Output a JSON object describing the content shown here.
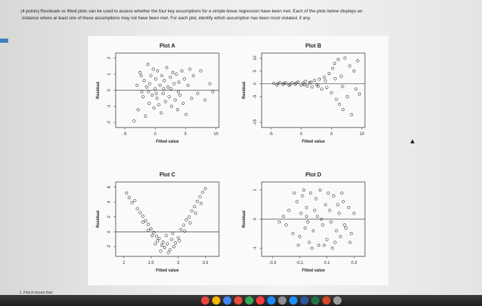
{
  "question": {
    "line1": "(4 points) Residuals vs fitted plots can be used to assess whether the four key assumptions for a simple linear regression have been met. Each of the plots below displays an",
    "line2": "instance where at least one of these assumptions may not have been met. For each plot, identify which assumption has been most violated, if any."
  },
  "answer_prompt": "1. Plot A shows that",
  "colors": {
    "accent": "#3f7fc1",
    "taskbar": "#1e1e1e",
    "point": "#222222"
  },
  "taskbar_icons": [
    "chrome-icon",
    "photos-icon",
    "mail-icon",
    "calendar-icon",
    "maps-icon",
    "music-icon",
    "app-store-icon",
    "settings-icon",
    "safari-icon",
    "word-icon",
    "excel-icon",
    "powerpoint-icon",
    "trash-icon"
  ],
  "chart_data": [
    {
      "type": "scatter",
      "title": "Plot A",
      "xlabel": "Fitted value",
      "ylabel": "Residual",
      "xlim": [
        -6.5,
        10.5
      ],
      "ylim": [
        -2.3,
        2.3
      ],
      "xticks": [
        -5,
        0,
        5,
        10
      ],
      "yticks": [
        -2,
        -1,
        0,
        1,
        2
      ],
      "hline": 0,
      "points": [
        [
          -3.5,
          -1.9
        ],
        [
          -3,
          0.3
        ],
        [
          -2.8,
          -1.2
        ],
        [
          -2.5,
          1.1
        ],
        [
          -2.3,
          0.9
        ],
        [
          -2,
          -0.4
        ],
        [
          -1.8,
          0.6
        ],
        [
          -1.6,
          -1.6
        ],
        [
          -1.4,
          0.2
        ],
        [
          -1.2,
          1.6
        ],
        [
          -1,
          -0.8
        ],
        [
          -0.9,
          0.4
        ],
        [
          -0.7,
          0.9
        ],
        [
          -0.5,
          -0.3
        ],
        [
          -0.3,
          1.3
        ],
        [
          -0.2,
          -1.1
        ],
        [
          0,
          0.1
        ],
        [
          0.1,
          0.7
        ],
        [
          0.3,
          -0.5
        ],
        [
          0.4,
          1.2
        ],
        [
          0.6,
          -0.9
        ],
        [
          0.8,
          0.3
        ],
        [
          1,
          -1.4
        ],
        [
          1.1,
          0.9
        ],
        [
          1.3,
          -0.2
        ],
        [
          1.5,
          0.6
        ],
        [
          1.7,
          -0.7
        ],
        [
          1.9,
          1.4
        ],
        [
          2.1,
          0.2
        ],
        [
          2.3,
          -0.4
        ],
        [
          2.5,
          0.8
        ],
        [
          2.7,
          -1
        ],
        [
          2.9,
          1.1
        ],
        [
          3.1,
          0.4
        ],
        [
          3.3,
          -0.6
        ],
        [
          3.5,
          1
        ],
        [
          3.7,
          -1.2
        ],
        [
          3.9,
          0.5
        ],
        [
          4.1,
          -0.3
        ],
        [
          4.4,
          1.2
        ],
        [
          4.6,
          -0.8
        ],
        [
          4.8,
          0.7
        ],
        [
          5.1,
          -1.5
        ],
        [
          5.4,
          0.3
        ],
        [
          5.7,
          1.3
        ],
        [
          6,
          -0.5
        ],
        [
          6.3,
          0.9
        ],
        [
          7,
          -0.2
        ],
        [
          7.5,
          1.2
        ],
        [
          8.2,
          -0.6
        ],
        [
          9,
          0.4
        ],
        [
          9.5,
          -0.1
        ],
        [
          -2.2,
          -0.1
        ],
        [
          -1.1,
          -0.1
        ],
        [
          0.2,
          -0.2
        ],
        [
          1.4,
          0.1
        ],
        [
          2.6,
          0.1
        ],
        [
          3.8,
          -0.1
        ]
      ]
    },
    {
      "type": "scatter",
      "title": "Plot B",
      "xlabel": "Fitted value",
      "ylabel": "Residual",
      "xlim": [
        -6.5,
        10.5
      ],
      "ylim": [
        -17,
        12
      ],
      "xticks": [
        -5,
        0,
        5,
        10
      ],
      "yticks": [
        -15,
        -5,
        0,
        5,
        10
      ],
      "hline": 0,
      "points": [
        [
          -4.5,
          0.2
        ],
        [
          -4,
          -0.4
        ],
        [
          -3.5,
          0.5
        ],
        [
          -3,
          -0.2
        ],
        [
          -2.5,
          0.3
        ],
        [
          -2,
          -0.6
        ],
        [
          -1.5,
          0.4
        ],
        [
          -1,
          -0.1
        ],
        [
          -0.5,
          0.7
        ],
        [
          0,
          -0.5
        ],
        [
          0.3,
          0.2
        ],
        [
          0.7,
          1
        ],
        [
          1,
          -0.8
        ],
        [
          1.4,
          0.4
        ],
        [
          1.8,
          -1.2
        ],
        [
          2.2,
          1.3
        ],
        [
          2.6,
          -0.3
        ],
        [
          3,
          1.8
        ],
        [
          3.4,
          -2
        ],
        [
          3.8,
          2.6
        ],
        [
          4.2,
          -1.4
        ],
        [
          4.6,
          4
        ],
        [
          5,
          -3.5
        ],
        [
          5.2,
          6
        ],
        [
          5.5,
          8
        ],
        [
          5.8,
          -6
        ],
        [
          6.1,
          9.5
        ],
        [
          6.3,
          -8
        ],
        [
          6.6,
          3
        ],
        [
          6.9,
          -10
        ],
        [
          7.2,
          10
        ],
        [
          7.6,
          -5
        ],
        [
          8,
          7
        ],
        [
          8.3,
          -12
        ],
        [
          8.7,
          5
        ],
        [
          9,
          -2
        ],
        [
          9.3,
          9
        ],
        [
          9.6,
          -4
        ],
        [
          -3.8,
          0.1
        ],
        [
          -2.8,
          0.2
        ],
        [
          -1.8,
          -0.2
        ],
        [
          -0.8,
          0.3
        ],
        [
          0.5,
          -0.3
        ],
        [
          1.6,
          0.6
        ],
        [
          2.8,
          -0.9
        ],
        [
          4,
          1.1
        ],
        [
          5.6,
          2
        ],
        [
          6.8,
          -1
        ]
      ]
    },
    {
      "type": "scatter",
      "title": "Plot C",
      "xlabel": "Fitted value",
      "ylabel": "Residual",
      "xlim": [
        1.85,
        3.75
      ],
      "ylim": [
        -3.3,
        6.7
      ],
      "xticks": [
        2.0,
        2.5,
        3.0,
        3.5
      ],
      "yticks": [
        -2,
        0,
        2,
        4,
        6
      ],
      "hline": 0,
      "points": [
        [
          2.05,
          5.2
        ],
        [
          2.1,
          4.6
        ],
        [
          2.15,
          3.9
        ],
        [
          2.2,
          4.2
        ],
        [
          2.25,
          3.1
        ],
        [
          2.3,
          2.6
        ],
        [
          2.35,
          2.1
        ],
        [
          2.4,
          1.5
        ],
        [
          2.45,
          1
        ],
        [
          2.5,
          0.4
        ],
        [
          2.55,
          -0.1
        ],
        [
          2.6,
          -0.6
        ],
        [
          2.62,
          -1.2
        ],
        [
          2.65,
          -0.9
        ],
        [
          2.7,
          -1.8
        ],
        [
          2.72,
          -1.4
        ],
        [
          2.75,
          -2.1
        ],
        [
          2.78,
          -0.5
        ],
        [
          2.8,
          -1.6
        ],
        [
          2.85,
          -2.4
        ],
        [
          2.88,
          -1
        ],
        [
          2.9,
          -0.2
        ],
        [
          2.95,
          -1.5
        ],
        [
          3,
          -0.8
        ],
        [
          3.05,
          0.3
        ],
        [
          3.1,
          0.9
        ],
        [
          3.15,
          1.6
        ],
        [
          3.2,
          2
        ],
        [
          3.25,
          2.8
        ],
        [
          3.3,
          3.4
        ],
        [
          3.35,
          4.1
        ],
        [
          3.4,
          4.7
        ],
        [
          3.45,
          5.3
        ],
        [
          3.5,
          5.8
        ],
        [
          2.35,
          1.3
        ],
        [
          2.45,
          0.2
        ],
        [
          2.52,
          -0.5
        ],
        [
          2.58,
          -1.6
        ],
        [
          2.68,
          -2.6
        ],
        [
          2.82,
          -2.8
        ],
        [
          2.92,
          -2
        ],
        [
          3.02,
          -1.2
        ],
        [
          3.12,
          0.1
        ],
        [
          3.22,
          1.2
        ],
        [
          3.32,
          2.5
        ],
        [
          3.42,
          3.8
        ]
      ]
    },
    {
      "type": "scatter",
      "title": "Plot D",
      "xlabel": "Fitted value",
      "ylabel": "Residual",
      "xlim": [
        -0.38,
        0.38
      ],
      "ylim": [
        -1.28,
        1.28
      ],
      "xticks": [
        -0.3,
        -0.1,
        0.1,
        0.3
      ],
      "yticks": [
        -1.0,
        0.0,
        1.0
      ],
      "hline": 0,
      "points": [
        [
          -0.25,
          -0.1
        ],
        [
          -0.22,
          0.1
        ],
        [
          -0.2,
          -0.2
        ],
        [
          -0.18,
          0.3
        ],
        [
          -0.15,
          -0.5
        ],
        [
          -0.12,
          0.6
        ],
        [
          -0.1,
          -0.6
        ],
        [
          -0.08,
          0.8
        ],
        [
          -0.06,
          -0.3
        ],
        [
          -0.05,
          0.4
        ],
        [
          -0.03,
          -0.8
        ],
        [
          -0.02,
          0.9
        ],
        [
          0,
          -0.4
        ],
        [
          0.02,
          0.7
        ],
        [
          0.04,
          -0.9
        ],
        [
          0.05,
          1
        ],
        [
          0.07,
          -0.2
        ],
        [
          0.09,
          0.5
        ],
        [
          0.1,
          -0.7
        ],
        [
          0.12,
          0.3
        ],
        [
          0.14,
          -1
        ],
        [
          0.15,
          0.8
        ],
        [
          0.17,
          -0.4
        ],
        [
          0.19,
          0.2
        ],
        [
          0.2,
          -0.6
        ],
        [
          0.22,
          0.6
        ],
        [
          0.24,
          -0.3
        ],
        [
          0.26,
          0.4
        ],
        [
          0.28,
          -0.5
        ],
        [
          0.3,
          0.2
        ],
        [
          -0.14,
          0.9
        ],
        [
          -0.11,
          -0.9
        ],
        [
          -0.07,
          1
        ],
        [
          -0.01,
          -1
        ],
        [
          0.03,
          0.1
        ],
        [
          0.08,
          -0.9
        ],
        [
          0.11,
          0.9
        ],
        [
          0.16,
          -0.8
        ],
        [
          0.21,
          0.9
        ],
        [
          0.27,
          -0.8
        ],
        [
          -0.05,
          0.1
        ],
        [
          -0.04,
          -0.1
        ],
        [
          0.01,
          0.3
        ],
        [
          0.06,
          0
        ],
        [
          0.13,
          -0.1
        ],
        [
          0.18,
          0.5
        ],
        [
          0.23,
          -0.2
        ],
        [
          -0.09,
          0.2
        ]
      ]
    }
  ]
}
